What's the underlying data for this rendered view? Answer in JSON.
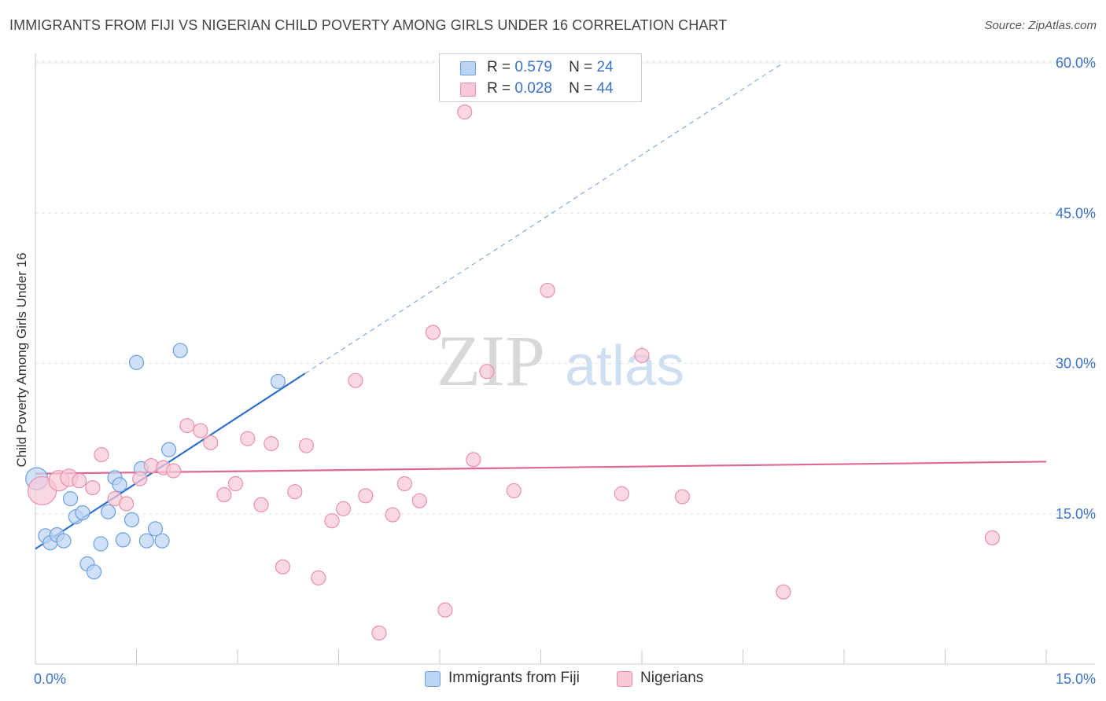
{
  "title": "IMMIGRANTS FROM FIJI VS NIGERIAN CHILD POVERTY AMONG GIRLS UNDER 16 CORRELATION CHART",
  "source": "Source: ZipAtlas.com",
  "watermark": {
    "zip": "ZIP",
    "atlas": "atlas"
  },
  "legend_top": [
    {
      "r_label": "R =",
      "r_value": "0.579",
      "n_label": "N =",
      "n_value": "24",
      "color": "#a8c8f0"
    },
    {
      "r_label": "R =",
      "r_value": "0.028",
      "n_label": "N =",
      "n_value": "44",
      "color": "#f5b8c8"
    }
  ],
  "chart_data": {
    "type": "scatter",
    "title": "IMMIGRANTS FROM FIJI VS NIGERIAN CHILD POVERTY AMONG GIRLS UNDER 16 CORRELATION CHART",
    "xlabel": "",
    "ylabel": "Child Poverty Among Girls Under 16",
    "xlim": [
      0,
      15
    ],
    "ylim": [
      0,
      60
    ],
    "x_ticks": [
      {
        "value": 0,
        "label": "0.0%"
      },
      {
        "value": 15,
        "label": "15.0%"
      }
    ],
    "y_ticks": [
      {
        "value": 15,
        "label": "15.0%"
      },
      {
        "value": 30,
        "label": "30.0%"
      },
      {
        "value": 45,
        "label": "45.0%"
      },
      {
        "value": 60,
        "label": "60.0%"
      }
    ],
    "grid": true,
    "legend": "top-center",
    "series": [
      {
        "name": "Immigrants from Fiji",
        "color": "#6a9fe0",
        "fill": "#bcd4f4",
        "trend_color": "#2f6fcc",
        "trend": {
          "x0": 0,
          "y0": 11.5,
          "x1": 4,
          "y1": 29.0,
          "dashed_to_x": 11.1,
          "dashed_to_y": 60.0
        },
        "points": [
          [
            0.02,
            18.5,
            14
          ],
          [
            0.15,
            12.8,
            9
          ],
          [
            0.22,
            12.1,
            9
          ],
          [
            0.32,
            12.9,
            9
          ],
          [
            0.42,
            12.3,
            9
          ],
          [
            0.52,
            16.5,
            9
          ],
          [
            0.6,
            14.7,
            9
          ],
          [
            0.7,
            15.1,
            9
          ],
          [
            0.77,
            10.0,
            9
          ],
          [
            0.87,
            9.2,
            9
          ],
          [
            0.97,
            12.0,
            9
          ],
          [
            1.08,
            15.2,
            9
          ],
          [
            1.18,
            18.6,
            9
          ],
          [
            1.25,
            17.9,
            9
          ],
          [
            1.3,
            12.4,
            9
          ],
          [
            1.43,
            14.4,
            9
          ],
          [
            1.5,
            30.1,
            9
          ],
          [
            1.57,
            19.5,
            9
          ],
          [
            1.65,
            12.3,
            9
          ],
          [
            1.78,
            13.5,
            9
          ],
          [
            1.88,
            12.3,
            9
          ],
          [
            1.98,
            21.4,
            9
          ],
          [
            2.15,
            31.3,
            9
          ],
          [
            3.6,
            28.2,
            9
          ]
        ]
      },
      {
        "name": "Nigerians",
        "color": "#e890a8",
        "fill": "#f8c8d6",
        "trend_color": "#e06890",
        "trend": {
          "x0": 0,
          "y0": 19.0,
          "x1": 15,
          "y1": 20.2
        },
        "points": [
          [
            0.1,
            17.3,
            18
          ],
          [
            0.35,
            18.3,
            13
          ],
          [
            0.5,
            18.6,
            11
          ],
          [
            0.65,
            18.3,
            9
          ],
          [
            0.85,
            17.6,
            9
          ],
          [
            0.98,
            20.9,
            9
          ],
          [
            1.18,
            16.5,
            9
          ],
          [
            1.35,
            16.0,
            9
          ],
          [
            1.55,
            18.5,
            9
          ],
          [
            1.72,
            19.8,
            9
          ],
          [
            1.9,
            19.6,
            9
          ],
          [
            2.05,
            19.3,
            9
          ],
          [
            2.25,
            23.8,
            9
          ],
          [
            2.45,
            23.3,
            9
          ],
          [
            2.6,
            22.1,
            9
          ],
          [
            2.8,
            16.9,
            9
          ],
          [
            2.97,
            18.0,
            9
          ],
          [
            3.15,
            22.5,
            9
          ],
          [
            3.35,
            15.9,
            9
          ],
          [
            3.5,
            22.0,
            9
          ],
          [
            3.67,
            9.7,
            9
          ],
          [
            3.85,
            17.2,
            9
          ],
          [
            4.02,
            21.8,
            9
          ],
          [
            4.2,
            8.6,
            9
          ],
          [
            4.4,
            14.3,
            9
          ],
          [
            4.57,
            15.5,
            9
          ],
          [
            4.75,
            28.3,
            9
          ],
          [
            4.9,
            16.8,
            9
          ],
          [
            5.1,
            3.1,
            9
          ],
          [
            5.3,
            14.9,
            9
          ],
          [
            5.48,
            18.0,
            9
          ],
          [
            5.7,
            16.3,
            9
          ],
          [
            5.9,
            33.1,
            9
          ],
          [
            6.08,
            5.4,
            9
          ],
          [
            6.37,
            55.1,
            9
          ],
          [
            6.5,
            20.4,
            9
          ],
          [
            6.7,
            29.2,
            9
          ],
          [
            7.1,
            17.3,
            9
          ],
          [
            7.6,
            37.3,
            9
          ],
          [
            8.7,
            17.0,
            9
          ],
          [
            9.0,
            30.8,
            9
          ],
          [
            9.6,
            16.7,
            9
          ],
          [
            11.1,
            7.2,
            9
          ],
          [
            14.2,
            12.6,
            9
          ]
        ]
      }
    ]
  },
  "legend_bottom": [
    {
      "label": "Immigrants from Fiji",
      "color": "#bcd4f4",
      "border": "#6a9fe0"
    },
    {
      "label": "Nigerians",
      "color": "#f8c8d6",
      "border": "#e890a8"
    }
  ]
}
